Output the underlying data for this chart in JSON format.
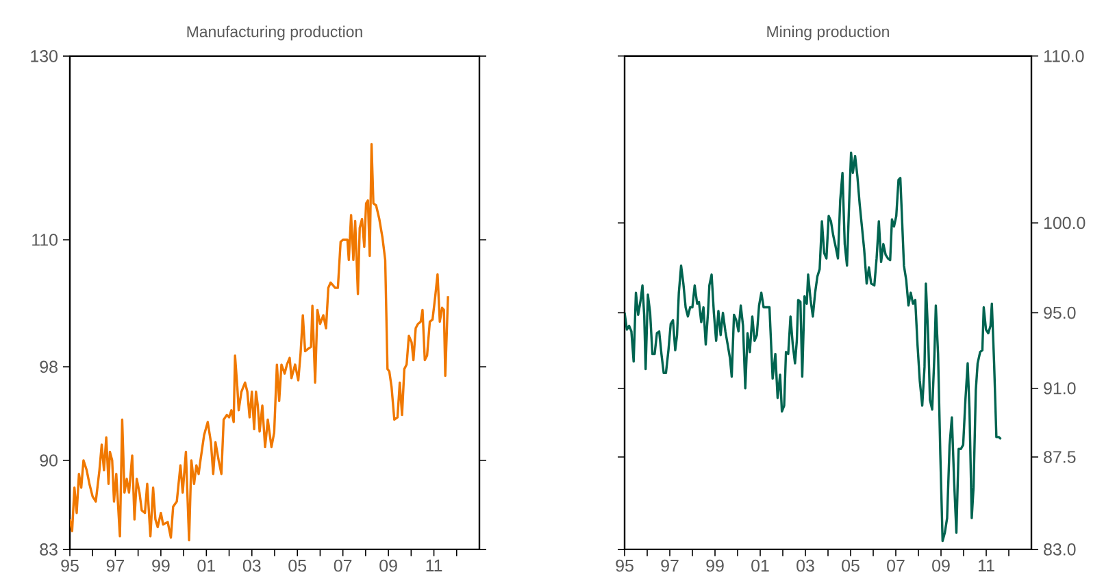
{
  "chart_data": [
    {
      "type": "line",
      "title": "Manufacturing production",
      "log": true,
      "x": [
        1995.0,
        1995.1,
        1995.2,
        1995.3,
        1995.4,
        1995.5,
        1995.6,
        1995.74,
        1995.86,
        1996.0,
        1996.14,
        1996.3,
        1996.4,
        1996.5,
        1996.6,
        1996.7,
        1996.76,
        1996.86,
        1996.94,
        1997.04,
        1997.2,
        1997.3,
        1997.4,
        1997.5,
        1997.6,
        1997.74,
        1997.84,
        1997.94,
        1998.06,
        1998.16,
        1998.3,
        1998.4,
        1998.54,
        1998.66,
        1998.76,
        1998.86,
        1999.0,
        1999.1,
        1999.3,
        1999.44,
        1999.54,
        1999.7,
        1999.86,
        1999.96,
        2000.1,
        2000.24,
        2000.34,
        2000.46,
        2000.56,
        2000.66,
        2000.74,
        2000.9,
        2001.06,
        2001.2,
        2001.3,
        2001.4,
        2001.54,
        2001.66,
        2001.76,
        2001.9,
        2002.0,
        2002.1,
        2002.2,
        2002.26,
        2002.36,
        2002.42,
        2002.54,
        2002.7,
        2002.8,
        2002.9,
        2003.0,
        2003.1,
        2003.18,
        2003.26,
        2003.34,
        2003.46,
        2003.58,
        2003.7,
        2003.86,
        2003.98,
        2004.1,
        2004.2,
        2004.3,
        2004.44,
        2004.54,
        2004.66,
        2004.74,
        2004.9,
        2005.04,
        2005.14,
        2005.24,
        2005.34,
        2005.46,
        2005.6,
        2005.66,
        2005.78,
        2005.88,
        2006.0,
        2006.14,
        2006.26,
        2006.36,
        2006.46,
        2006.66,
        2006.78,
        2006.9,
        2007.0,
        2007.2,
        2007.26,
        2007.36,
        2007.46,
        2007.54,
        2007.66,
        2007.74,
        2007.84,
        2007.94,
        2008.02,
        2008.1,
        2008.18,
        2008.26,
        2008.34,
        2008.46,
        2008.6,
        2008.74,
        2008.86,
        2008.96,
        2009.04,
        2009.14,
        2009.26,
        2009.4,
        2009.5,
        2009.6,
        2009.7,
        2009.8,
        2009.9,
        2010.02,
        2010.1,
        2010.2,
        2010.3,
        2010.42,
        2010.5,
        2010.6,
        2010.7,
        2010.82,
        2010.94,
        2011.06,
        2011.16,
        2011.26,
        2011.36,
        2011.44,
        2011.5,
        2011.62
      ],
      "series": [
        {
          "color": "#f07800",
          "values": [
            85.3,
            84.4,
            87.8,
            85.8,
            88.9,
            87.8,
            90.0,
            89.2,
            88.1,
            87.1,
            86.7,
            89.2,
            91.3,
            89.2,
            91.9,
            88.1,
            90.7,
            90.0,
            86.7,
            88.9,
            84.0,
            93.4,
            87.4,
            88.5,
            87.4,
            90.4,
            85.3,
            88.5,
            87.4,
            86.0,
            85.8,
            88.1,
            84.0,
            87.8,
            85.3,
            84.7,
            85.8,
            84.9,
            85.1,
            83.9,
            86.3,
            86.7,
            89.6,
            87.4,
            90.7,
            83.7,
            90.0,
            88.1,
            89.6,
            88.9,
            90.0,
            92.1,
            93.2,
            91.5,
            88.9,
            91.5,
            90.0,
            88.9,
            93.4,
            93.8,
            93.6,
            94.2,
            93.2,
            99.0,
            96.2,
            94.2,
            95.8,
            96.6,
            95.8,
            93.6,
            95.8,
            92.6,
            95.8,
            94.6,
            92.4,
            94.6,
            91.1,
            93.4,
            91.1,
            92.3,
            98.2,
            95.0,
            98.2,
            97.4,
            98.2,
            98.8,
            97.0,
            98.2,
            96.8,
            99.2,
            102.7,
            99.4,
            99.6,
            99.8,
            103.6,
            96.6,
            103.2,
            101.9,
            102.7,
            101.5,
            105.3,
            105.8,
            105.3,
            105.3,
            109.8,
            110.0,
            110.0,
            108.0,
            112.5,
            108.0,
            111.9,
            104.7,
            111.2,
            112.1,
            109.3,
            113.7,
            114.0,
            108.4,
            120.0,
            113.7,
            113.5,
            112.1,
            110.2,
            108.0,
            97.8,
            97.6,
            96.2,
            93.4,
            93.6,
            96.6,
            93.8,
            97.8,
            98.2,
            100.8,
            100.2,
            98.6,
            101.5,
            101.9,
            102.1,
            103.2,
            98.6,
            99.0,
            102.1,
            102.3,
            104.5,
            106.6,
            102.1,
            103.4,
            103.2,
            97.2,
            104.5
          ]
        }
      ],
      "xlim": [
        1995,
        2013
      ],
      "xticks": [
        {
          "value": 1995,
          "label": "95"
        },
        {
          "value": 1996,
          "label": null
        },
        {
          "value": 1997,
          "label": "97"
        },
        {
          "value": 1998,
          "label": null
        },
        {
          "value": 1999,
          "label": "99"
        },
        {
          "value": 2000,
          "label": null
        },
        {
          "value": 2001,
          "label": "01"
        },
        {
          "value": 2002,
          "label": null
        },
        {
          "value": 2003,
          "label": "03"
        },
        {
          "value": 2004,
          "label": null
        },
        {
          "value": 2005,
          "label": "05"
        },
        {
          "value": 2006,
          "label": null
        },
        {
          "value": 2007,
          "label": "07"
        },
        {
          "value": 2008,
          "label": null
        },
        {
          "value": 2009,
          "label": "09"
        },
        {
          "value": 2010,
          "label": null
        },
        {
          "value": 2011,
          "label": "11"
        },
        {
          "value": 2012,
          "label": null
        }
      ],
      "ylim": [
        83,
        130
      ],
      "yticks": [
        83,
        90,
        98,
        110,
        130
      ]
    },
    {
      "type": "line",
      "title": "Mining production",
      "log": "y2",
      "x": [
        1995.0,
        1995.1,
        1995.2,
        1995.3,
        1995.4,
        1995.5,
        1995.6,
        1995.71,
        1995.79,
        1995.87,
        1995.93,
        1996.03,
        1996.13,
        1996.23,
        1996.33,
        1996.43,
        1996.53,
        1996.63,
        1996.73,
        1996.83,
        1996.94,
        1997.04,
        1997.14,
        1997.24,
        1997.32,
        1997.4,
        1997.5,
        1997.6,
        1997.7,
        1997.8,
        1997.9,
        1998.0,
        1998.1,
        1998.21,
        1998.29,
        1998.39,
        1998.49,
        1998.59,
        1998.69,
        1998.75,
        1998.85,
        1998.95,
        1999.05,
        1999.15,
        1999.25,
        1999.35,
        1999.46,
        1999.56,
        1999.66,
        1999.74,
        1999.84,
        1999.94,
        2000.04,
        2000.14,
        2000.24,
        2000.34,
        2000.44,
        2000.54,
        2000.65,
        2000.75,
        2000.85,
        2000.95,
        2001.05,
        2001.15,
        2001.27,
        2001.41,
        2001.55,
        2001.67,
        2001.77,
        2001.88,
        2001.96,
        2002.06,
        2002.14,
        2002.24,
        2002.34,
        2002.44,
        2002.54,
        2002.62,
        2002.68,
        2002.78,
        2002.86,
        2002.96,
        2003.06,
        2003.12,
        2003.23,
        2003.33,
        2003.43,
        2003.53,
        2003.63,
        2003.73,
        2003.83,
        2003.93,
        2004.03,
        2004.13,
        2004.23,
        2004.33,
        2004.44,
        2004.54,
        2004.64,
        2004.74,
        2004.84,
        2004.94,
        2005.02,
        2005.1,
        2005.2,
        2005.3,
        2005.4,
        2005.5,
        2005.6,
        2005.71,
        2005.81,
        2005.91,
        2006.05,
        2006.15,
        2006.25,
        2006.35,
        2006.45,
        2006.55,
        2006.65,
        2006.75,
        2006.83,
        2006.92,
        2007.02,
        2007.12,
        2007.2,
        2007.28,
        2007.36,
        2007.46,
        2007.56,
        2007.66,
        2007.76,
        2007.86,
        2007.96,
        2008.06,
        2008.17,
        2008.27,
        2008.33,
        2008.43,
        2008.51,
        2008.61,
        2008.71,
        2008.77,
        2008.87,
        2008.97,
        2009.07,
        2009.17,
        2009.27,
        2009.38,
        2009.48,
        2009.58,
        2009.68,
        2009.78,
        2009.88,
        2009.98,
        2010.08,
        2010.18,
        2010.26,
        2010.36,
        2010.44,
        2010.54,
        2010.62,
        2010.73,
        2010.83,
        2010.89,
        2010.99,
        2011.09,
        2011.19,
        2011.25,
        2011.35,
        2011.45,
        2011.55,
        2011.65
      ],
      "series": [
        {
          "color": "#006450",
          "axis": "y2",
          "values": [
            95.0,
            94.1,
            94.3,
            94.0,
            92.4,
            96.1,
            94.9,
            95.7,
            96.5,
            94.8,
            92.0,
            96.0,
            95.0,
            92.8,
            92.8,
            93.9,
            94.0,
            92.8,
            91.8,
            91.8,
            93.0,
            94.4,
            94.6,
            93.0,
            93.8,
            96.1,
            97.6,
            96.6,
            95.3,
            94.8,
            95.3,
            95.3,
            96.5,
            95.5,
            95.6,
            94.5,
            95.3,
            93.3,
            95.0,
            96.5,
            97.1,
            95.0,
            93.5,
            95.1,
            93.8,
            95.0,
            94.0,
            93.3,
            92.6,
            91.6,
            94.9,
            94.6,
            94.0,
            95.4,
            94.3,
            91.0,
            93.9,
            92.9,
            94.8,
            93.5,
            93.8,
            95.4,
            96.1,
            95.3,
            95.3,
            95.3,
            91.5,
            92.8,
            90.5,
            91.7,
            89.8,
            90.1,
            92.9,
            92.8,
            94.8,
            93.3,
            92.3,
            93.5,
            95.7,
            95.6,
            91.6,
            95.9,
            95.5,
            97.1,
            95.7,
            94.8,
            96.1,
            97.0,
            97.4,
            100.1,
            98.3,
            98.0,
            100.4,
            100.1,
            99.3,
            98.7,
            98.0,
            101.3,
            102.9,
            98.8,
            97.6,
            101.3,
            104.1,
            102.9,
            103.9,
            102.7,
            101.1,
            99.8,
            98.5,
            96.6,
            97.5,
            96.6,
            96.5,
            98.0,
            100.1,
            97.8,
            98.8,
            98.2,
            98.0,
            97.9,
            100.2,
            99.8,
            100.4,
            102.5,
            102.6,
            100.1,
            97.6,
            96.8,
            95.4,
            96.1,
            95.5,
            95.7,
            93.3,
            91.4,
            90.1,
            92.1,
            96.6,
            93.8,
            90.4,
            89.9,
            92.8,
            95.4,
            92.8,
            87.6,
            83.4,
            83.8,
            84.5,
            88.1,
            89.5,
            86.3,
            83.8,
            87.9,
            87.9,
            88.1,
            90.4,
            92.3,
            89.9,
            84.5,
            86.0,
            90.9,
            92.3,
            92.9,
            93.0,
            95.3,
            94.1,
            93.9,
            94.3,
            95.5,
            92.3,
            88.5,
            88.5,
            88.4
          ]
        }
      ],
      "xlim": [
        1995,
        2013
      ],
      "xticks": [
        {
          "value": 1995,
          "label": "95"
        },
        {
          "value": 1996,
          "label": null
        },
        {
          "value": 1997,
          "label": "97"
        },
        {
          "value": 1998,
          "label": null
        },
        {
          "value": 1999,
          "label": "99"
        },
        {
          "value": 2000,
          "label": null
        },
        {
          "value": 2001,
          "label": "01"
        },
        {
          "value": 2002,
          "label": null
        },
        {
          "value": 2003,
          "label": "03"
        },
        {
          "value": 2004,
          "label": null
        },
        {
          "value": 2005,
          "label": "05"
        },
        {
          "value": 2006,
          "label": null
        },
        {
          "value": 2007,
          "label": "07"
        },
        {
          "value": 2008,
          "label": null
        },
        {
          "value": 2009,
          "label": "09"
        },
        {
          "value": 2010,
          "label": null
        },
        {
          "value": 2011,
          "label": "11"
        },
        {
          "value": 2012,
          "label": null
        }
      ],
      "y2lim": [
        83,
        110
      ],
      "y2ticks": [
        {
          "value": 83,
          "label": "83.0"
        },
        87.5,
        {
          "value": 91,
          "label": "91.0"
        },
        {
          "value": 95,
          "label": "95.0"
        },
        {
          "value": 100,
          "label": "100.0"
        },
        {
          "value": 110,
          "label": "110.0"
        }
      ]
    }
  ]
}
